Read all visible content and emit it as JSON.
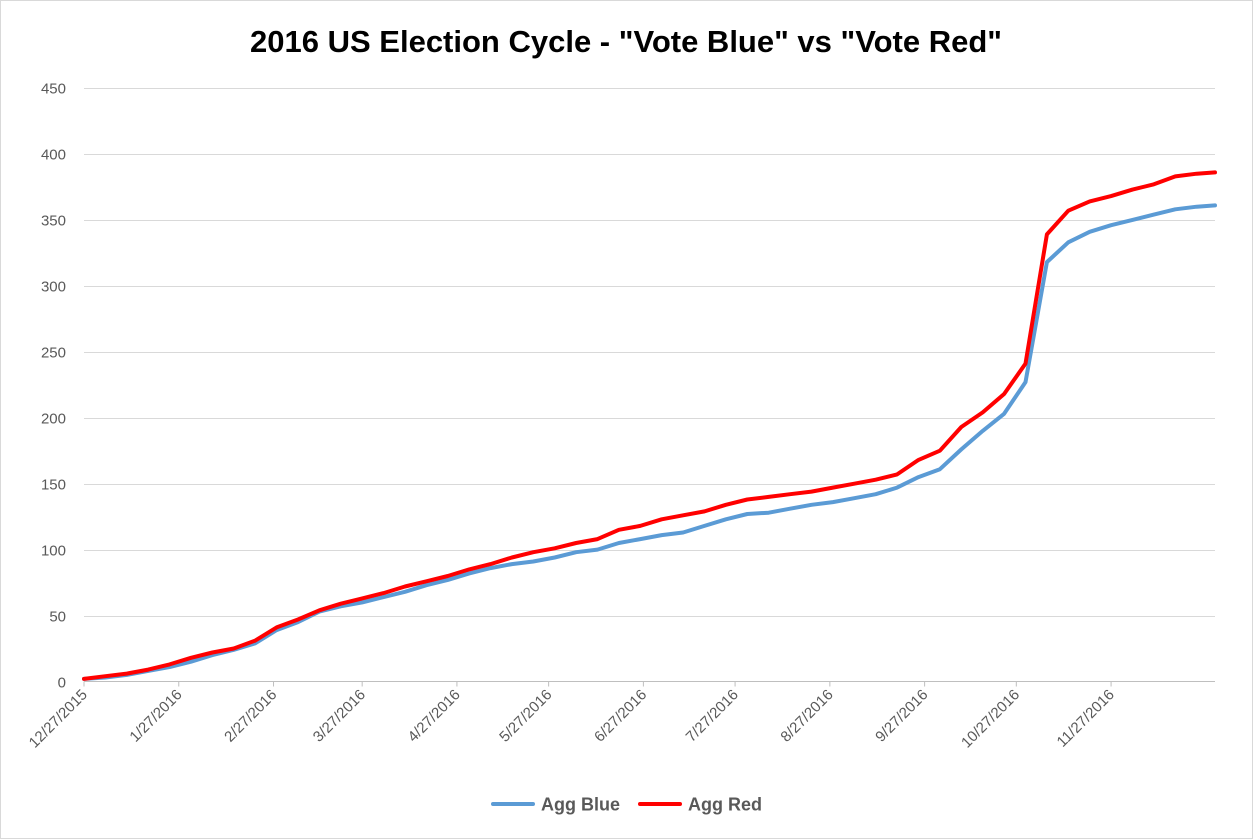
{
  "chart_data": {
    "type": "line",
    "title": "2016 US Election Cycle - \"Vote Blue\" vs \"Vote Red\"",
    "xlabel": "",
    "ylabel": "",
    "ylim": [
      0,
      450
    ],
    "yticks": [
      0,
      50,
      100,
      150,
      200,
      250,
      300,
      350,
      400,
      450
    ],
    "xlim": [
      "2015-12-27",
      "2016-12-31"
    ],
    "xticks": [
      {
        "date": "2015-12-27",
        "label": "12/27/2015"
      },
      {
        "date": "2016-01-27",
        "label": "1/27/2016"
      },
      {
        "date": "2016-02-27",
        "label": "2/27/2016"
      },
      {
        "date": "2016-03-27",
        "label": "3/27/2016"
      },
      {
        "date": "2016-04-27",
        "label": "4/27/2016"
      },
      {
        "date": "2016-05-27",
        "label": "5/27/2016"
      },
      {
        "date": "2016-06-27",
        "label": "6/27/2016"
      },
      {
        "date": "2016-07-27",
        "label": "7/27/2016"
      },
      {
        "date": "2016-08-27",
        "label": "8/27/2016"
      },
      {
        "date": "2016-09-27",
        "label": "9/27/2016"
      },
      {
        "date": "2016-10-27",
        "label": "10/27/2016"
      },
      {
        "date": "2016-11-27",
        "label": "11/27/2016"
      }
    ],
    "grid": true,
    "legend_position": "bottom",
    "x": [
      "2015-12-27",
      "2016-01-03",
      "2016-01-10",
      "2016-01-17",
      "2016-01-24",
      "2016-01-31",
      "2016-02-07",
      "2016-02-14",
      "2016-02-21",
      "2016-02-28",
      "2016-03-06",
      "2016-03-13",
      "2016-03-20",
      "2016-03-27",
      "2016-04-03",
      "2016-04-10",
      "2016-04-17",
      "2016-04-24",
      "2016-05-01",
      "2016-05-08",
      "2016-05-15",
      "2016-05-22",
      "2016-05-29",
      "2016-06-05",
      "2016-06-12",
      "2016-06-19",
      "2016-06-26",
      "2016-07-03",
      "2016-07-10",
      "2016-07-17",
      "2016-07-24",
      "2016-07-31",
      "2016-08-07",
      "2016-08-14",
      "2016-08-21",
      "2016-08-28",
      "2016-09-04",
      "2016-09-11",
      "2016-09-18",
      "2016-09-25",
      "2016-10-02",
      "2016-10-09",
      "2016-10-16",
      "2016-10-23",
      "2016-10-30",
      "2016-11-06",
      "2016-11-13",
      "2016-11-20",
      "2016-11-27",
      "2016-12-04",
      "2016-12-11",
      "2016-12-18",
      "2016-12-25",
      "2016-12-31"
    ],
    "series": [
      {
        "name": "Agg Blue",
        "color": "#5b9bd5",
        "values": [
          2,
          3,
          5,
          8,
          11,
          15,
          20,
          24,
          29,
          39,
          45,
          53,
          57,
          60,
          64,
          68,
          73,
          77,
          82,
          86,
          89,
          91,
          94,
          98,
          100,
          105,
          108,
          111,
          113,
          118,
          123,
          127,
          128,
          131,
          134,
          136,
          139,
          142,
          147,
          155,
          161,
          176,
          190,
          203,
          227,
          318,
          333,
          341,
          346,
          350,
          354,
          358,
          360,
          361
        ]
      },
      {
        "name": "Agg Red",
        "color": "#ff0000",
        "values": [
          2,
          4,
          6,
          9,
          13,
          18,
          22,
          25,
          31,
          41,
          47,
          54,
          59,
          63,
          67,
          72,
          76,
          80,
          85,
          89,
          94,
          98,
          101,
          105,
          108,
          115,
          118,
          123,
          126,
          129,
          134,
          138,
          140,
          142,
          144,
          147,
          150,
          153,
          157,
          168,
          175,
          193,
          204,
          218,
          241,
          339,
          357,
          364,
          368,
          373,
          377,
          383,
          385,
          386
        ]
      }
    ]
  }
}
